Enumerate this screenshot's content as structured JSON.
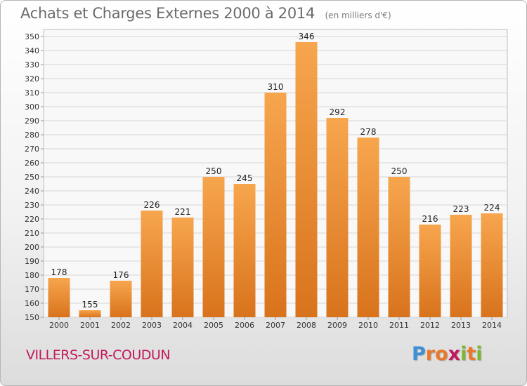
{
  "chart_data": {
    "type": "bar",
    "title": "Achats et Charges Externes 2000 à 2014",
    "subtitle": "(en milliers d'€)",
    "xlabel": "",
    "ylabel": "",
    "categories": [
      "2000",
      "2001",
      "2002",
      "2003",
      "2004",
      "2005",
      "2006",
      "2007",
      "2008",
      "2009",
      "2010",
      "2011",
      "2012",
      "2013",
      "2014"
    ],
    "values": [
      178,
      155,
      176,
      226,
      221,
      250,
      245,
      310,
      346,
      292,
      278,
      250,
      216,
      223,
      224
    ],
    "ylim": [
      150,
      350
    ],
    "ytick_step": 10,
    "grid": true,
    "legend": "none",
    "bar_color_light": "#f7a64e",
    "bar_color_dark": "#d8731c"
  },
  "footer": {
    "commune": "VILLERS-SUR-COUDUN",
    "logo_letters": [
      "P",
      "r",
      "o",
      "x",
      "i",
      "t",
      "i"
    ],
    "logo_colors": [
      "#3d8fd6",
      "#e9782a",
      "#e9782a",
      "#c2185b",
      "#7bb832",
      "#e9782a",
      "#7bb832"
    ]
  }
}
